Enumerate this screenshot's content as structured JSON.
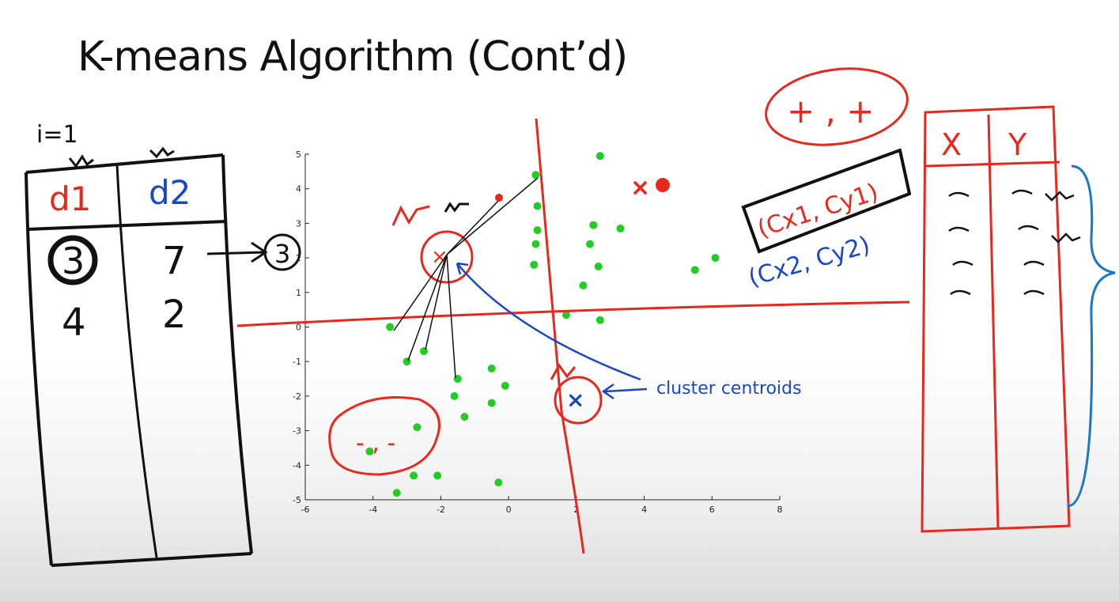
{
  "title": "K-means Algorithm (Cont’d)",
  "colors": {
    "ink_black": "#111111",
    "ink_red": "#e8281c",
    "ink_blue": "#1848c8",
    "points": "#22cc22"
  },
  "left_table": {
    "iteration_label": "i=1",
    "headers": [
      "d1",
      "d2"
    ],
    "rows": [
      [
        "3",
        "7"
      ],
      [
        "4",
        "2"
      ]
    ],
    "circled_min": "3"
  },
  "right_table": {
    "headers": [
      "X",
      "Y"
    ]
  },
  "annotations": {
    "plus_plus": "+ , +",
    "minus_minus": "- , -",
    "centroid1": "(Cx1, Cy1)",
    "centroid2_prefix": "(Cx",
    "centroid2_suffix": "2, Cy2)",
    "cluster_label": "cluster centroids"
  },
  "chart_data": {
    "type": "scatter",
    "xlim": [
      -6,
      8
    ],
    "ylim": [
      -5,
      5
    ],
    "xticks": [
      "-6",
      "-4",
      "-2",
      "0",
      "2",
      "4",
      "6",
      "8"
    ],
    "yticks": [
      "5",
      "4",
      "3",
      "2",
      "1",
      "0",
      "-1",
      "-2",
      "-3",
      "-4",
      "-5"
    ],
    "points": [
      [
        -3.5,
        0.0
      ],
      [
        -3.0,
        -1.0
      ],
      [
        -2.5,
        -0.7
      ],
      [
        -1.5,
        -1.5
      ],
      [
        -1.6,
        -2.0
      ],
      [
        -1.3,
        -2.6
      ],
      [
        -0.5,
        -1.2
      ],
      [
        -0.5,
        -2.2
      ],
      [
        -0.1,
        -1.7
      ],
      [
        -2.7,
        -2.9
      ],
      [
        -4.1,
        -3.6
      ],
      [
        -2.8,
        -4.3
      ],
      [
        -2.1,
        -4.3
      ],
      [
        -3.3,
        -4.8
      ],
      [
        -0.3,
        -4.5
      ],
      [
        0.8,
        4.4
      ],
      [
        0.85,
        3.5
      ],
      [
        0.85,
        2.8
      ],
      [
        0.8,
        2.4
      ],
      [
        0.75,
        1.8
      ],
      [
        1.7,
        0.35
      ],
      [
        2.2,
        1.2
      ],
      [
        2.4,
        2.4
      ],
      [
        2.5,
        2.95
      ],
      [
        2.65,
        1.75
      ],
      [
        2.7,
        0.2
      ],
      [
        3.3,
        2.85
      ],
      [
        2.7,
        4.95
      ],
      [
        5.5,
        1.65
      ],
      [
        6.1,
        2.0
      ]
    ],
    "centroids": [
      {
        "x": -2.0,
        "y": 2.0,
        "color": "#e8281c"
      },
      {
        "x": 2.0,
        "y": -2.0,
        "color": "#1848c8"
      }
    ]
  }
}
